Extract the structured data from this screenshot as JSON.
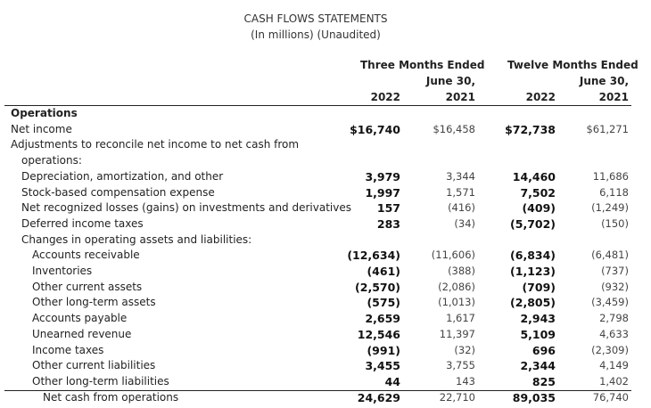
{
  "title": "CASH FLOWS STATEMENTS",
  "subtitle": "(In millions) (Unaudited)",
  "headers": {
    "three_months": "Three Months Ended",
    "twelve_months": "Twelve Months Ended",
    "june30": "June 30,",
    "y2022": "2022",
    "y2021": "2021"
  },
  "rows": [
    {
      "label": "Operations",
      "bold": true,
      "indent": 0,
      "v": [
        "",
        "",
        "",
        ""
      ]
    },
    {
      "label": "Net income",
      "indent": 0,
      "v": [
        "$16,740",
        "$16,458",
        "$72,738",
        "$61,271"
      ]
    },
    {
      "label": "Adjustments to reconcile net income to net cash from",
      "indent": 0,
      "v": [
        "",
        "",
        "",
        ""
      ]
    },
    {
      "label": "operations:",
      "indent": 1,
      "v": [
        "",
        "",
        "",
        ""
      ]
    },
    {
      "label": "Depreciation, amortization, and other",
      "indent": 1,
      "v": [
        "3,979",
        "3,344",
        "14,460",
        "11,686"
      ]
    },
    {
      "label": "Stock-based compensation expense",
      "indent": 1,
      "v": [
        "1,997",
        "1,571",
        "7,502",
        "6,118"
      ]
    },
    {
      "label": "Net recognized losses (gains) on investments and derivatives",
      "indent": 1,
      "v": [
        "157",
        "(416)",
        "(409)",
        "(1,249)"
      ]
    },
    {
      "label": "Deferred income taxes",
      "indent": 1,
      "v": [
        "283",
        "(34)",
        "(5,702)",
        "(150)"
      ]
    },
    {
      "label": "Changes in operating assets and liabilities:",
      "indent": 1,
      "v": [
        "",
        "",
        "",
        ""
      ]
    },
    {
      "label": "Accounts receivable",
      "indent": 2,
      "v": [
        "(12,634)",
        "(11,606)",
        "(6,834)",
        "(6,481)"
      ]
    },
    {
      "label": "Inventories",
      "indent": 2,
      "v": [
        "(461)",
        "(388)",
        "(1,123)",
        "(737)"
      ]
    },
    {
      "label": "Other current assets",
      "indent": 2,
      "v": [
        "(2,570)",
        "(2,086)",
        "(709)",
        "(932)"
      ]
    },
    {
      "label": "Other long-term assets",
      "indent": 2,
      "v": [
        "(575)",
        "(1,013)",
        "(2,805)",
        "(3,459)"
      ]
    },
    {
      "label": "Accounts payable",
      "indent": 2,
      "v": [
        "2,659",
        "1,617",
        "2,943",
        "2,798"
      ]
    },
    {
      "label": "Unearned revenue",
      "indent": 2,
      "v": [
        "12,546",
        "11,397",
        "5,109",
        "4,633"
      ]
    },
    {
      "label": "Income taxes",
      "indent": 2,
      "v": [
        "(991)",
        "(32)",
        "696",
        "(2,309)"
      ]
    },
    {
      "label": "Other current liabilities",
      "indent": 2,
      "v": [
        "3,455",
        "3,755",
        "2,344",
        "4,149"
      ]
    },
    {
      "label": "Other long-term liabilities",
      "indent": 2,
      "v": [
        "44",
        "143",
        "825",
        "1,402"
      ]
    },
    {
      "label": "Net cash from operations",
      "indent": 3,
      "v": [
        "24,629",
        "22,710",
        "89,035",
        "76,740"
      ]
    }
  ]
}
